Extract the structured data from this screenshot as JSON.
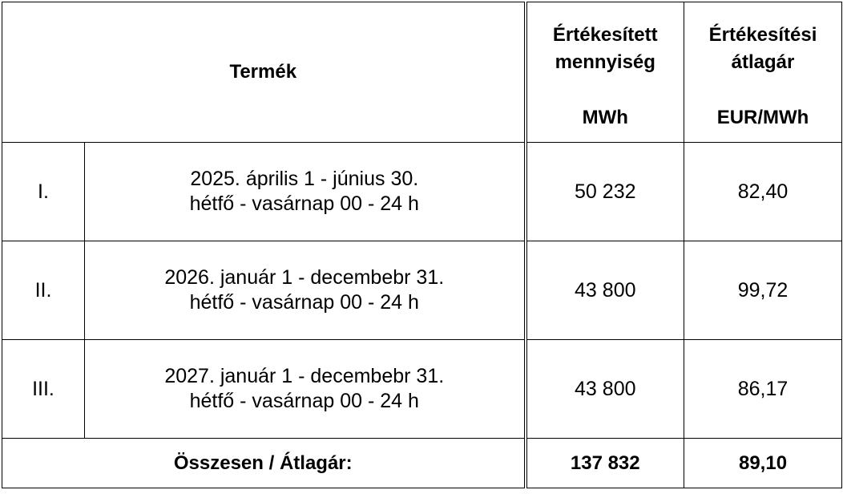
{
  "table": {
    "header": {
      "product": "Termék",
      "quantity": {
        "title": [
          "Értékesített",
          "mennyiség"
        ],
        "unit": "MWh"
      },
      "price": {
        "title": [
          "Értékesítési",
          "átlagár"
        ],
        "unit": "EUR/MWh"
      }
    },
    "rows": [
      {
        "id": "I.",
        "product": [
          "2025. április 1 - június 30.",
          "hétfő - vasárnap 00 - 24 h"
        ],
        "quantity": "50 232",
        "price": "82,40"
      },
      {
        "id": "II.",
        "product": [
          "2026. január 1 - decembebr 31.",
          "hétfő - vasárnap 00 - 24 h"
        ],
        "quantity": "43 800",
        "price": "99,72"
      },
      {
        "id": "III.",
        "product": [
          "2027. január 1 - decembebr 31.",
          "hétfő - vasárnap 00 - 24 h"
        ],
        "quantity": "43 800",
        "price": "86,17"
      }
    ],
    "total": {
      "label": "Összesen / Átlagár:",
      "quantity": "137 832",
      "price": "89,10"
    }
  }
}
